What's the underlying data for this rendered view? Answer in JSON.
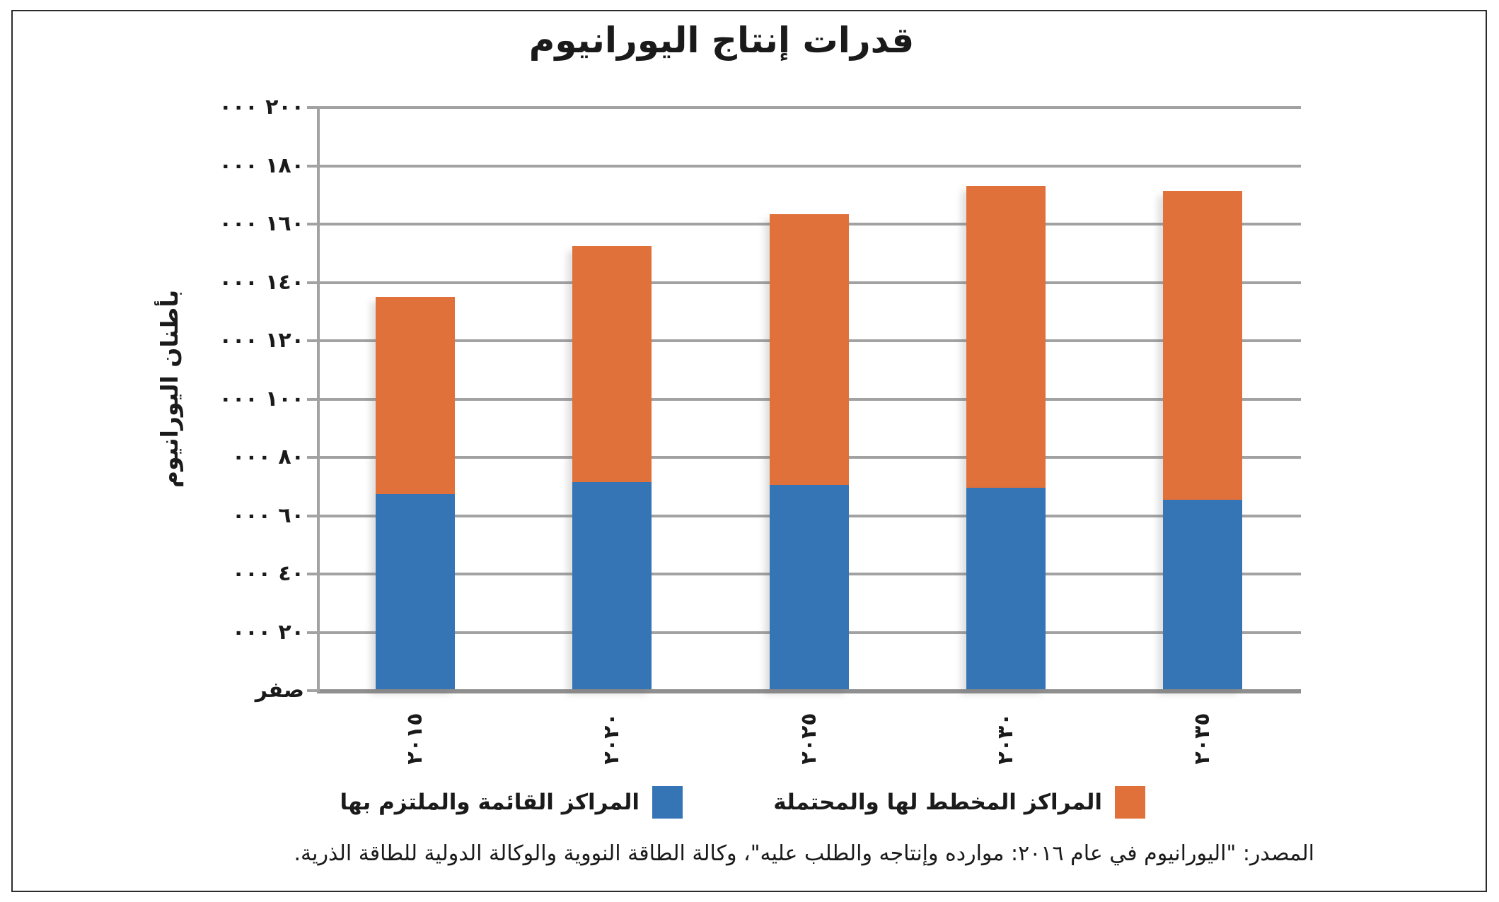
{
  "title": "قدرات إنتاج اليورانيوم",
  "y_axis": {
    "title": "بأطنان اليورانيوم",
    "ticks": [
      {
        "value": 200000,
        "label": "٢٠٠ ٠٠٠"
      },
      {
        "value": 180000,
        "label": "١٨٠ ٠٠٠"
      },
      {
        "value": 160000,
        "label": "١٦٠ ٠٠٠"
      },
      {
        "value": 140000,
        "label": "١٤٠ ٠٠٠"
      },
      {
        "value": 120000,
        "label": "١٢٠ ٠٠٠"
      },
      {
        "value": 100000,
        "label": "١٠٠ ٠٠٠"
      },
      {
        "value": 80000,
        "label": "٨٠ ٠٠٠"
      },
      {
        "value": 60000,
        "label": "٦٠ ٠٠٠"
      },
      {
        "value": 40000,
        "label": "٤٠ ٠٠٠"
      },
      {
        "value": 20000,
        "label": "٢٠ ٠٠٠"
      },
      {
        "value": 0,
        "label": "صفر"
      }
    ]
  },
  "x_axis": {
    "labels": [
      "٢٠١٥",
      "٢٠٢٠",
      "٢٠٢٥",
      "٢٠٣٠",
      "٢٠٣٥"
    ]
  },
  "legend": [
    {
      "label": "المراكز المخطط لها والمحتملة",
      "color": "#E0713B"
    },
    {
      "label": "المراكز القائمة والملتزم بها",
      "color": "#3574B5"
    }
  ],
  "source": "المصدر: \"اليورانيوم في عام ٢٠١٦: موارده وإنتاجه والطلب عليه\"، وكالة الطاقة النووية والوكالة الدولية للطاقة الذرية.",
  "chart_data": {
    "type": "bar",
    "stacked": true,
    "title": "قدرات إنتاج اليورانيوم",
    "ylabel": "بأطنان اليورانيوم",
    "ylim": [
      0,
      200000
    ],
    "ytick_step": 20000,
    "grid": true,
    "legend_position": "bottom",
    "categories": [
      "٢٠١٥",
      "٢٠٢٠",
      "٢٠٢٥",
      "٢٠٣٠",
      "٢٠٣٥"
    ],
    "categories_western": [
      2015,
      2020,
      2025,
      2030,
      2035
    ],
    "series": [
      {
        "name": "المراكز القائمة والملتزم بها",
        "color": "#3574B5",
        "values": [
          67000,
          71000,
          70000,
          69000,
          65000
        ]
      },
      {
        "name": "المراكز المخطط لها والمحتملة",
        "color": "#E0713B",
        "values": [
          67500,
          81000,
          93000,
          103500,
          106000
        ]
      }
    ],
    "totals": [
      134500,
      152000,
      163000,
      172500,
      171000
    ]
  }
}
